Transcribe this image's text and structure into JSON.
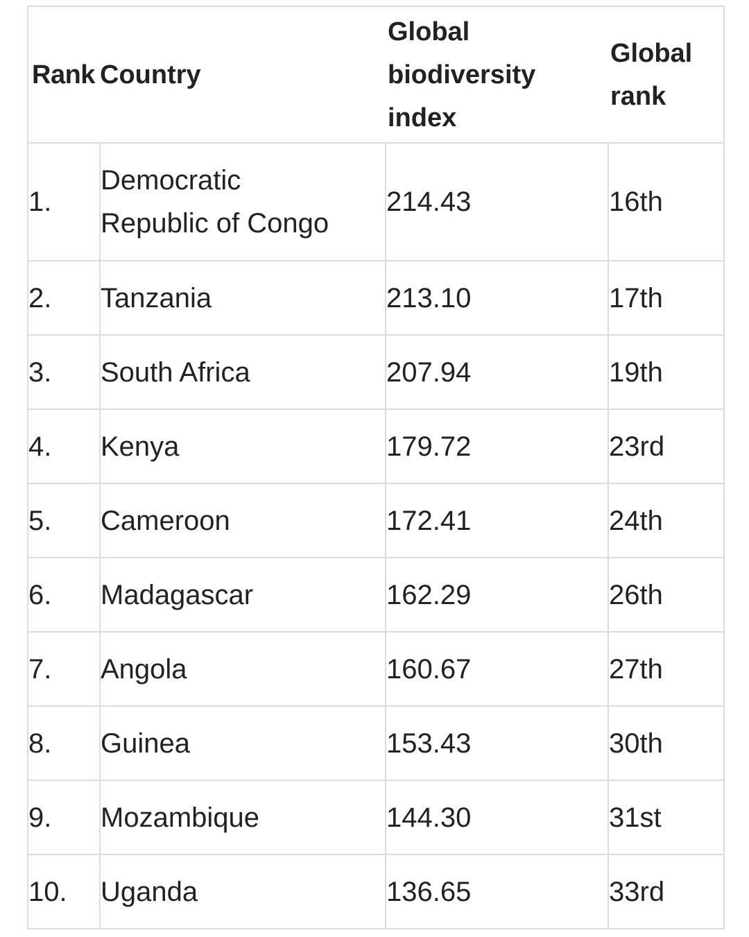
{
  "table": {
    "headers": {
      "rank": "Rank",
      "country": "Country",
      "index_line1": "Global",
      "index_line2": "biodiversity",
      "index_line3": "index",
      "grank_line1": "Global",
      "grank_line2": "rank"
    },
    "rows": [
      {
        "rank": "1.",
        "country_line1": "Democratic",
        "country_line2": "Republic of Congo",
        "index": "214.43",
        "global_rank": "16th"
      },
      {
        "rank": "2.",
        "country": "Tanzania",
        "index": "213.10",
        "global_rank": "17th"
      },
      {
        "rank": "3.",
        "country": "South Africa",
        "index": "207.94",
        "global_rank": "19th"
      },
      {
        "rank": "4.",
        "country": "Kenya",
        "index": "179.72",
        "global_rank": "23rd"
      },
      {
        "rank": "5.",
        "country": "Cameroon",
        "index": "172.41",
        "global_rank": "24th"
      },
      {
        "rank": "6.",
        "country": "Madagascar",
        "index": "162.29",
        "global_rank": "26th"
      },
      {
        "rank": "7.",
        "country": "Angola",
        "index": "160.67",
        "global_rank": "27th"
      },
      {
        "rank": "8.",
        "country": "Guinea",
        "index": "153.43",
        "global_rank": "30th"
      },
      {
        "rank": "9.",
        "country": "Mozambique",
        "index": "144.30",
        "global_rank": "31st"
      },
      {
        "rank": "10.",
        "country": "Uganda",
        "index": "136.65",
        "global_rank": "33rd"
      }
    ]
  }
}
